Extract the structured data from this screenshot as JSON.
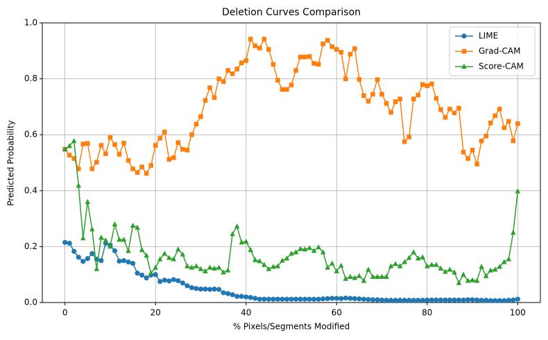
{
  "chart_data": {
    "type": "line",
    "title": "Deletion Curves Comparison",
    "xlabel": "% Pixels/Segments Modified",
    "ylabel": "Predicted Probability",
    "x": [
      0,
      1,
      2,
      3,
      4,
      5,
      6,
      7,
      8,
      9,
      10,
      11,
      12,
      13,
      14,
      15,
      16,
      17,
      18,
      19,
      20,
      21,
      22,
      23,
      24,
      25,
      26,
      27,
      28,
      29,
      30,
      31,
      32,
      33,
      34,
      35,
      36,
      37,
      38,
      39,
      40,
      41,
      42,
      43,
      44,
      45,
      46,
      47,
      48,
      49,
      50,
      51,
      52,
      53,
      54,
      55,
      56,
      57,
      58,
      59,
      60,
      61,
      62,
      63,
      64,
      65,
      66,
      67,
      68,
      69,
      70,
      71,
      72,
      73,
      74,
      75,
      76,
      77,
      78,
      79,
      80,
      81,
      82,
      83,
      84,
      85,
      86,
      87,
      88,
      89,
      90,
      91,
      92,
      93,
      94,
      95,
      96,
      97,
      98,
      99,
      100
    ],
    "series": [
      {
        "name": "LIME",
        "color": "#1f77b4",
        "marker": "circle",
        "values": [
          0.215,
          0.212,
          0.183,
          0.162,
          0.147,
          0.157,
          0.175,
          0.155,
          0.15,
          0.212,
          0.205,
          0.185,
          0.148,
          0.15,
          0.145,
          0.14,
          0.105,
          0.098,
          0.088,
          0.098,
          0.1,
          0.075,
          0.08,
          0.077,
          0.082,
          0.078,
          0.07,
          0.06,
          0.053,
          0.05,
          0.048,
          0.048,
          0.047,
          0.048,
          0.047,
          0.035,
          0.032,
          0.028,
          0.022,
          0.022,
          0.02,
          0.018,
          0.015,
          0.012,
          0.012,
          0.012,
          0.012,
          0.012,
          0.012,
          0.012,
          0.012,
          0.012,
          0.012,
          0.012,
          0.012,
          0.012,
          0.012,
          0.013,
          0.014,
          0.015,
          0.015,
          0.014,
          0.016,
          0.015,
          0.014,
          0.013,
          0.012,
          0.011,
          0.01,
          0.01,
          0.009,
          0.008,
          0.008,
          0.008,
          0.008,
          0.008,
          0.008,
          0.008,
          0.008,
          0.008,
          0.009,
          0.009,
          0.009,
          0.009,
          0.009,
          0.009,
          0.009,
          0.009,
          0.009,
          0.01,
          0.01,
          0.009,
          0.008,
          0.008,
          0.007,
          0.007,
          0.007,
          0.007,
          0.008,
          0.009,
          0.012
        ]
      },
      {
        "name": "Grad-CAM",
        "color": "#ff7f0e",
        "marker": "square",
        "values": [
          0.548,
          0.527,
          0.515,
          0.478,
          0.567,
          0.569,
          0.478,
          0.502,
          0.562,
          0.532,
          0.59,
          0.565,
          0.53,
          0.57,
          0.508,
          0.478,
          0.465,
          0.485,
          0.462,
          0.49,
          0.562,
          0.588,
          0.61,
          0.512,
          0.518,
          0.572,
          0.548,
          0.545,
          0.6,
          0.638,
          0.665,
          0.723,
          0.768,
          0.733,
          0.8,
          0.79,
          0.83,
          0.818,
          0.835,
          0.857,
          0.865,
          0.942,
          0.918,
          0.91,
          0.942,
          0.905,
          0.852,
          0.795,
          0.762,
          0.762,
          0.778,
          0.83,
          0.878,
          0.878,
          0.88,
          0.855,
          0.852,
          0.925,
          0.938,
          0.915,
          0.905,
          0.895,
          0.8,
          0.888,
          0.908,
          0.798,
          0.74,
          0.72,
          0.745,
          0.797,
          0.745,
          0.712,
          0.68,
          0.718,
          0.728,
          0.575,
          0.592,
          0.728,
          0.742,
          0.78,
          0.775,
          0.782,
          0.73,
          0.69,
          0.662,
          0.692,
          0.678,
          0.695,
          0.538,
          0.515,
          0.545,
          0.495,
          0.578,
          0.595,
          0.642,
          0.668,
          0.692,
          0.625,
          0.648,
          0.578,
          0.64
        ]
      },
      {
        "name": "Score-CAM",
        "color": "#2ca02c",
        "marker": "triangle",
        "values": [
          0.548,
          0.56,
          0.578,
          0.418,
          0.23,
          0.36,
          0.262,
          0.12,
          0.232,
          0.222,
          0.2,
          0.28,
          0.225,
          0.225,
          0.185,
          0.275,
          0.268,
          0.188,
          0.168,
          0.105,
          0.125,
          0.155,
          0.175,
          0.16,
          0.155,
          0.19,
          0.172,
          0.13,
          0.125,
          0.13,
          0.12,
          0.112,
          0.125,
          0.122,
          0.125,
          0.108,
          0.115,
          0.245,
          0.272,
          0.215,
          0.218,
          0.188,
          0.152,
          0.148,
          0.135,
          0.12,
          0.128,
          0.13,
          0.15,
          0.158,
          0.175,
          0.18,
          0.192,
          0.19,
          0.195,
          0.185,
          0.198,
          0.18,
          0.125,
          0.14,
          0.112,
          0.132,
          0.085,
          0.092,
          0.088,
          0.095,
          0.078,
          0.118,
          0.092,
          0.092,
          0.092,
          0.092,
          0.13,
          0.138,
          0.13,
          0.145,
          0.16,
          0.18,
          0.158,
          0.162,
          0.13,
          0.135,
          0.135,
          0.122,
          0.11,
          0.118,
          0.108,
          0.07,
          0.1,
          0.078,
          0.08,
          0.078,
          0.128,
          0.095,
          0.115,
          0.118,
          0.128,
          0.145,
          0.155,
          0.25,
          0.398
        ]
      }
    ],
    "xlim": [
      -5,
      105
    ],
    "ylim": [
      0,
      1
    ],
    "xticks": [
      0,
      20,
      40,
      60,
      80,
      100
    ],
    "yticks": [
      {
        "value": 0,
        "label": "0.0"
      },
      {
        "value": 0.2,
        "label": "0.2"
      },
      {
        "value": 0.4,
        "label": "0.4"
      },
      {
        "value": 0.6,
        "label": "0.6"
      },
      {
        "value": 0.8,
        "label": "0.8"
      },
      {
        "value": 1,
        "label": "1.0"
      }
    ],
    "grid": true,
    "legend": "upper right"
  }
}
